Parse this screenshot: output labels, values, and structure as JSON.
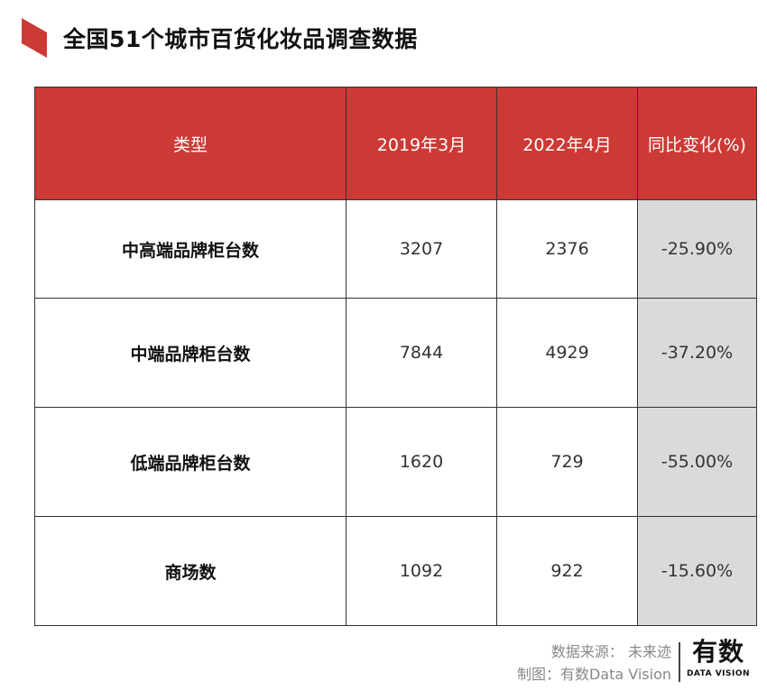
{
  "title": "全国51个城市百货化妆品调查数据",
  "chart_data": {
    "type": "table",
    "columns": [
      "类型",
      "2019年3月",
      "2022年4月",
      "同比变化(%)"
    ],
    "rows": [
      {
        "label": "中高端品牌柜台数",
        "v2019": "3207",
        "v2022": "2376",
        "change": "-25.90%"
      },
      {
        "label": "中端品牌柜台数",
        "v2019": "7844",
        "v2022": "4929",
        "change": "-37.20%"
      },
      {
        "label": "低端品牌柜台数",
        "v2019": "1620",
        "v2022": "729",
        "change": "-55.00%"
      },
      {
        "label": "商场数",
        "v2019": "1092",
        "v2022": "922",
        "change": "-15.60%"
      }
    ]
  },
  "footer": {
    "source": "数据来源： 未来迹",
    "maker": "制图：有数Data Vision"
  },
  "logo": {
    "main": "有数",
    "sub": "DATA VISION"
  },
  "colors": {
    "header": "#cc3a35",
    "change_cell": "#dadada"
  }
}
